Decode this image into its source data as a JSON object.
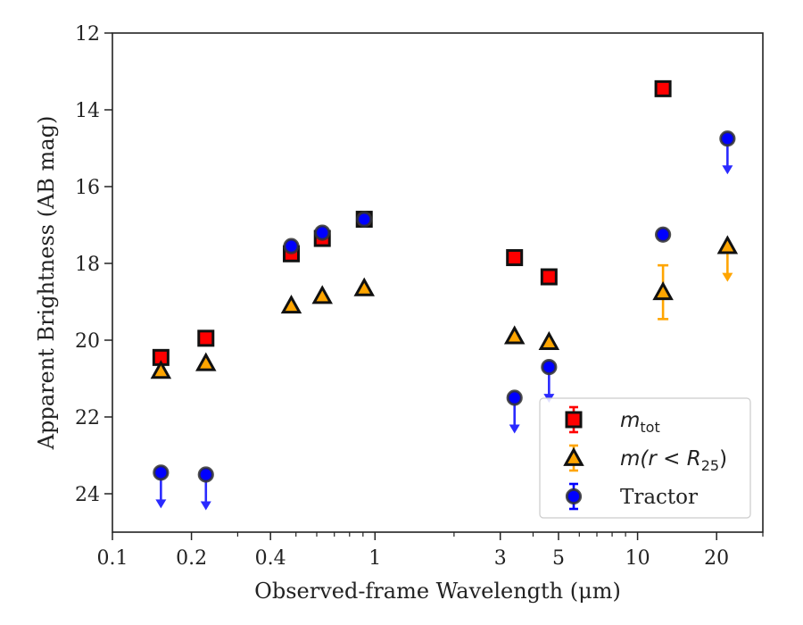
{
  "chart_data": {
    "type": "scatter",
    "xlabel": "Observed-frame Wavelength (μm)",
    "ylabel": "Apparent Brightness (AB mag)",
    "x_scale": "log",
    "xlim": [
      0.1,
      30
    ],
    "ylim": [
      25,
      12
    ],
    "y_inverted": true,
    "x_ticks": [
      {
        "value": 0.1,
        "label": "0.1"
      },
      {
        "value": 0.2,
        "label": "0.2"
      },
      {
        "value": 0.4,
        "label": "0.4"
      },
      {
        "value": 1,
        "label": "1"
      },
      {
        "value": 3,
        "label": "3"
      },
      {
        "value": 5,
        "label": "5"
      },
      {
        "value": 10,
        "label": "10"
      },
      {
        "value": 20,
        "label": "20"
      }
    ],
    "y_ticks": [
      {
        "value": 12,
        "label": "12"
      },
      {
        "value": 14,
        "label": "14"
      },
      {
        "value": 16,
        "label": "16"
      },
      {
        "value": 18,
        "label": "18"
      },
      {
        "value": 20,
        "label": "20"
      },
      {
        "value": 22,
        "label": "22"
      },
      {
        "value": 24,
        "label": "24"
      }
    ],
    "legend_position": "bottom-right",
    "series": [
      {
        "name_main": "m",
        "name_sub": "tot",
        "marker": "square",
        "color": "#ff0000",
        "edge_color": "#111111",
        "points": [
          {
            "x": 0.153,
            "y": 20.45
          },
          {
            "x": 0.227,
            "y": 19.95
          },
          {
            "x": 0.48,
            "y": 17.75
          },
          {
            "x": 0.63,
            "y": 17.35
          },
          {
            "x": 0.91,
            "y": 16.85
          },
          {
            "x": 3.4,
            "y": 17.85
          },
          {
            "x": 4.6,
            "y": 18.35
          },
          {
            "x": 12.5,
            "y": 13.45
          }
        ]
      },
      {
        "name_main": "m(r < R",
        "name_sub": "25",
        "name_tail": ")",
        "marker": "triangle",
        "color": "#ffa500",
        "edge_color": "#111111",
        "points": [
          {
            "x": 0.153,
            "y": 20.8
          },
          {
            "x": 0.227,
            "y": 20.6
          },
          {
            "x": 0.48,
            "y": 19.1
          },
          {
            "x": 0.63,
            "y": 18.85
          },
          {
            "x": 0.91,
            "y": 18.65
          },
          {
            "x": 3.4,
            "y": 19.9
          },
          {
            "x": 4.6,
            "y": 20.05
          },
          {
            "x": 12.5,
            "y": 18.75,
            "err": 0.7
          },
          {
            "x": 22,
            "y": 17.55,
            "upper_limit": true
          }
        ]
      },
      {
        "name": "Tractor",
        "marker": "circle",
        "color": "#0000ff",
        "edge_color": "#333333",
        "points": [
          {
            "x": 0.153,
            "y": 23.45,
            "upper_limit": true
          },
          {
            "x": 0.227,
            "y": 23.5,
            "upper_limit": true
          },
          {
            "x": 0.48,
            "y": 17.55
          },
          {
            "x": 0.63,
            "y": 17.2
          },
          {
            "x": 0.91,
            "y": 16.85
          },
          {
            "x": 3.4,
            "y": 21.5,
            "upper_limit": true
          },
          {
            "x": 4.6,
            "y": 20.7,
            "upper_limit": true
          },
          {
            "x": 12.5,
            "y": 17.25
          },
          {
            "x": 22,
            "y": 14.75,
            "upper_limit": true
          }
        ]
      }
    ]
  }
}
